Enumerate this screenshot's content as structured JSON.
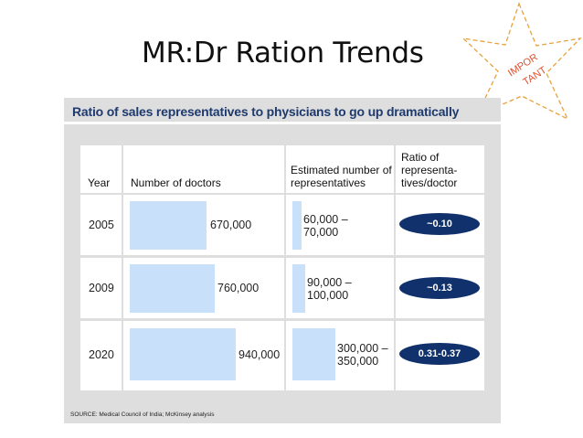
{
  "slide": {
    "title": "MR:Dr Ration Trends",
    "badge_lines": [
      "IMPOR",
      "TANT"
    ]
  },
  "panel": {
    "heading": "Ratio of sales representatives to physicians to go up dramatically",
    "source": "SOURCE: Medical Council of India; McKinsey analysis"
  },
  "table": {
    "headers": {
      "year": "Year",
      "doctors": "Number of doctors",
      "reps": "Estimated number of representatives",
      "ratio": "Ratio of representa- tives/doctor"
    },
    "rows": [
      {
        "year": "2005",
        "doctors": "670,000",
        "doctors_value": 670000,
        "reps_line1": "60,000 –",
        "reps_line2": "70,000",
        "reps_value": 65000,
        "ratio": "~0.10"
      },
      {
        "year": "2009",
        "doctors": "760,000",
        "doctors_value": 760000,
        "reps_line1": "90,000 –",
        "reps_line2": "100,000",
        "reps_value": 95000,
        "ratio": "~0.13"
      },
      {
        "year": "2020",
        "doctors": "940,000",
        "doctors_value": 940000,
        "reps_line1": "300,000 –",
        "reps_line2": "350,000",
        "reps_value": 325000,
        "ratio": "0.31-0.37"
      }
    ]
  },
  "colors": {
    "heading": "#1e3a6e",
    "bar": "#c9e0fa",
    "pill": "#10316b",
    "panel_bg": "#dedede",
    "star_outline": "#e8a23c",
    "star_text": "#e0502f"
  }
}
